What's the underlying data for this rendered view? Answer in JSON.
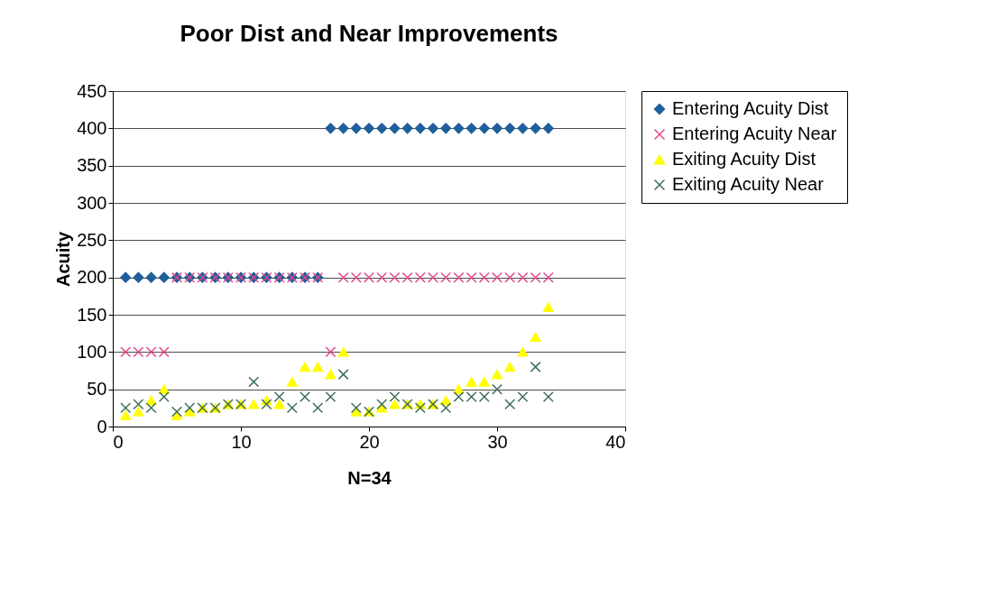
{
  "chart_data": {
    "type": "scatter",
    "title": "Poor Dist and Near Improvements",
    "xlabel": "N=34",
    "ylabel": "Acuity",
    "x": [
      1,
      2,
      3,
      4,
      5,
      6,
      7,
      8,
      9,
      10,
      11,
      12,
      13,
      14,
      15,
      16,
      17,
      18,
      19,
      20,
      21,
      22,
      23,
      24,
      25,
      26,
      27,
      28,
      29,
      30,
      31,
      32,
      33,
      34
    ],
    "series": [
      {
        "name": "Entering Acuity Dist",
        "color": "#1f5f9a",
        "marker": "diamond",
        "values": [
          200,
          200,
          200,
          200,
          200,
          200,
          200,
          200,
          200,
          200,
          200,
          200,
          200,
          200,
          200,
          200,
          400,
          400,
          400,
          400,
          400,
          400,
          400,
          400,
          400,
          400,
          400,
          400,
          400,
          400,
          400,
          400,
          400,
          400
        ]
      },
      {
        "name": "Entering Acuity Near",
        "color": "#e0468c",
        "marker": "cross",
        "values": [
          100,
          100,
          100,
          100,
          200,
          200,
          200,
          200,
          200,
          200,
          200,
          200,
          200,
          200,
          200,
          200,
          100,
          200,
          200,
          200,
          200,
          200,
          200,
          200,
          200,
          200,
          200,
          200,
          200,
          200,
          200,
          200,
          200,
          200
        ]
      },
      {
        "name": "Exiting Acuity Dist",
        "color": "#ffff00",
        "marker": "triangle",
        "values": [
          15,
          20,
          35,
          50,
          15,
          20,
          25,
          25,
          30,
          30,
          30,
          35,
          30,
          60,
          80,
          80,
          70,
          100,
          20,
          20,
          25,
          30,
          30,
          30,
          30,
          35,
          50,
          60,
          60,
          70,
          80,
          100,
          120,
          160
        ]
      },
      {
        "name": "Exiting Acuity Near",
        "color": "#3d6e5a",
        "marker": "cross",
        "values": [
          25,
          30,
          25,
          40,
          20,
          25,
          25,
          25,
          30,
          30,
          60,
          30,
          40,
          25,
          40,
          25,
          40,
          70,
          25,
          20,
          30,
          40,
          30,
          25,
          30,
          25,
          40,
          40,
          40,
          50,
          30,
          40,
          80,
          40
        ]
      }
    ],
    "xlim": [
      0,
      40
    ],
    "xticks": [
      0,
      10,
      20,
      30,
      40
    ],
    "ylim": [
      0,
      450
    ],
    "yticks": [
      0,
      50,
      100,
      150,
      200,
      250,
      300,
      350,
      400,
      450
    ],
    "grid": "y",
    "legend": "right"
  }
}
